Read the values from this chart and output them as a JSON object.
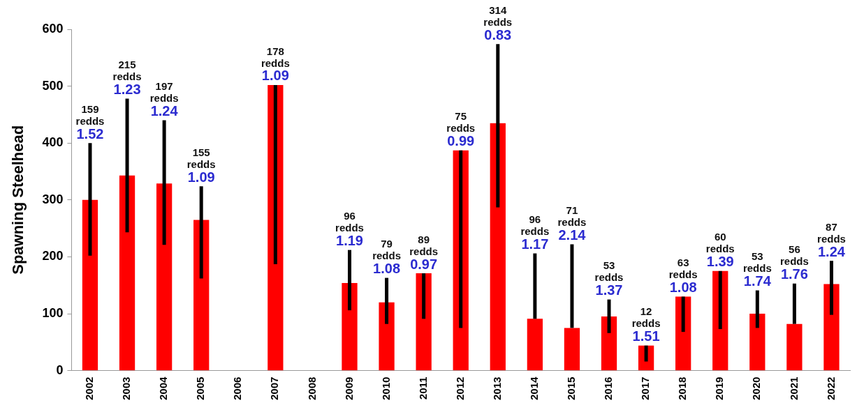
{
  "chart_data": {
    "type": "bar",
    "ylabel": "Spawning Steelhead",
    "categories": [
      "2002",
      "2003",
      "2004",
      "2005",
      "2006",
      "2007",
      "2008",
      "2009",
      "2010",
      "2011",
      "2012",
      "2013",
      "2014",
      "2015",
      "2016",
      "2017",
      "2018",
      "2019",
      "2020",
      "2021",
      "2022"
    ],
    "values": [
      300,
      343,
      329,
      265,
      null,
      502,
      null,
      154,
      120,
      171,
      387,
      435,
      91,
      75,
      95,
      44,
      130,
      175,
      100,
      82,
      152
    ],
    "color": "#ff0000",
    "errors": [
      [
        202,
        400
      ],
      [
        243,
        478
      ],
      [
        221,
        440
      ],
      [
        162,
        324
      ],
      null,
      [
        187,
        502
      ],
      null,
      [
        106,
        212
      ],
      [
        82,
        163
      ],
      [
        91,
        171
      ],
      [
        75,
        387
      ],
      [
        287,
        574
      ],
      [
        91,
        206
      ],
      [
        75,
        222
      ],
      [
        66,
        125
      ],
      [
        16,
        44
      ],
      [
        68,
        130
      ],
      [
        73,
        175
      ],
      [
        75,
        141
      ],
      [
        82,
        153
      ],
      [
        98,
        193
      ]
    ],
    "annotations": [
      {
        "text": "159 redds 1.52",
        "x": "2002",
        "y": 400
      },
      {
        "text": "215 redds 1.23",
        "x": "2003",
        "y": 478
      },
      {
        "text": "197 redds 1.24",
        "x": "2004",
        "y": 440
      },
      {
        "text": "155 redds 1.09",
        "x": "2005",
        "y": 324
      },
      {
        "text": "178 redds 1.09",
        "x": "2007",
        "y": 502
      },
      {
        "text": "96 redds 1.19",
        "x": "2009",
        "y": 212
      },
      {
        "text": "79 redds 1.08",
        "x": "2010",
        "y": 163
      },
      {
        "text": "89 redds 0.97",
        "x": "2011",
        "y": 171
      },
      {
        "text": "75 redds 0.99",
        "x": "2012",
        "y": 387
      },
      {
        "text": "314 redds 0.83",
        "x": "2013",
        "y": 574
      },
      {
        "text": "96 redds 1.17",
        "x": "2014",
        "y": 206
      },
      {
        "text": "71 redds 2.14",
        "x": "2015",
        "y": 222
      },
      {
        "text": "53 redds 1.37",
        "x": "2016",
        "y": 125
      },
      {
        "text": "12 redds 1.51",
        "x": "2017",
        "y": 44
      },
      {
        "text": "63 redds 1.08",
        "x": "2018",
        "y": 130
      },
      {
        "text": "60 redds 1.39",
        "x": "2019",
        "y": 175
      },
      {
        "text": "53 redds 1.74",
        "x": "2020",
        "y": 141
      },
      {
        "text": "56 redds 1.76",
        "x": "2021",
        "y": 153
      },
      {
        "text": "87 redds 1.24",
        "x": "2022",
        "y": 193
      }
    ],
    "ylim": [
      0,
      600
    ],
    "yticks": [
      0,
      100,
      200,
      300,
      400,
      500,
      600
    ],
    "grid": false,
    "legend": false
  }
}
